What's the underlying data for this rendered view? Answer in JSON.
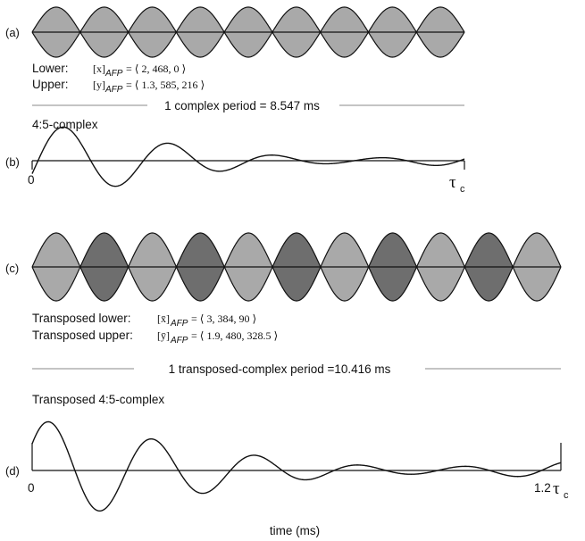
{
  "panels": {
    "a": {
      "label": "(a)"
    },
    "b": {
      "label": "(b)",
      "title": "4:5-complex",
      "start_label": "0",
      "end_symbol": "τ",
      "end_sub": "c"
    },
    "c": {
      "label": "(c)"
    },
    "d": {
      "label": "(d)",
      "title": "Transposed 4:5-complex",
      "start_label": "0",
      "end_prefix": "1.2",
      "end_symbol": "τ",
      "end_sub": "c"
    }
  },
  "legend_a": {
    "lower_label": "Lower:",
    "lower_var": "[x]",
    "lower_sub": "AFP",
    "lower_value": "= ⟨ 2, 468, 0 ⟩",
    "upper_label": "Upper:",
    "upper_var": "[y]",
    "upper_sub": "AFP",
    "upper_value": "= ⟨ 1.3, 585, 216 ⟩"
  },
  "legend_c": {
    "lower_label": "Transposed lower:",
    "lower_var": "[x̄]",
    "lower_sub": "AFP",
    "lower_value": "= ⟨ 3, 384, 90 ⟩",
    "upper_label": "Transposed upper:",
    "upper_var": "[ȳ]",
    "upper_sub": "AFP",
    "upper_value": "= ⟨ 1.9, 480, 328.5 ⟩"
  },
  "period_text_1": "1 complex period = 8.547 ms",
  "period_text_2": "1 transposed-complex period =10.416 ms",
  "xlabel": "time (ms)",
  "colors": {
    "light_fill": "#a9a9a9",
    "dark_fill": "#6e6e6e",
    "stroke": "#111111",
    "rule": "#888888"
  }
}
